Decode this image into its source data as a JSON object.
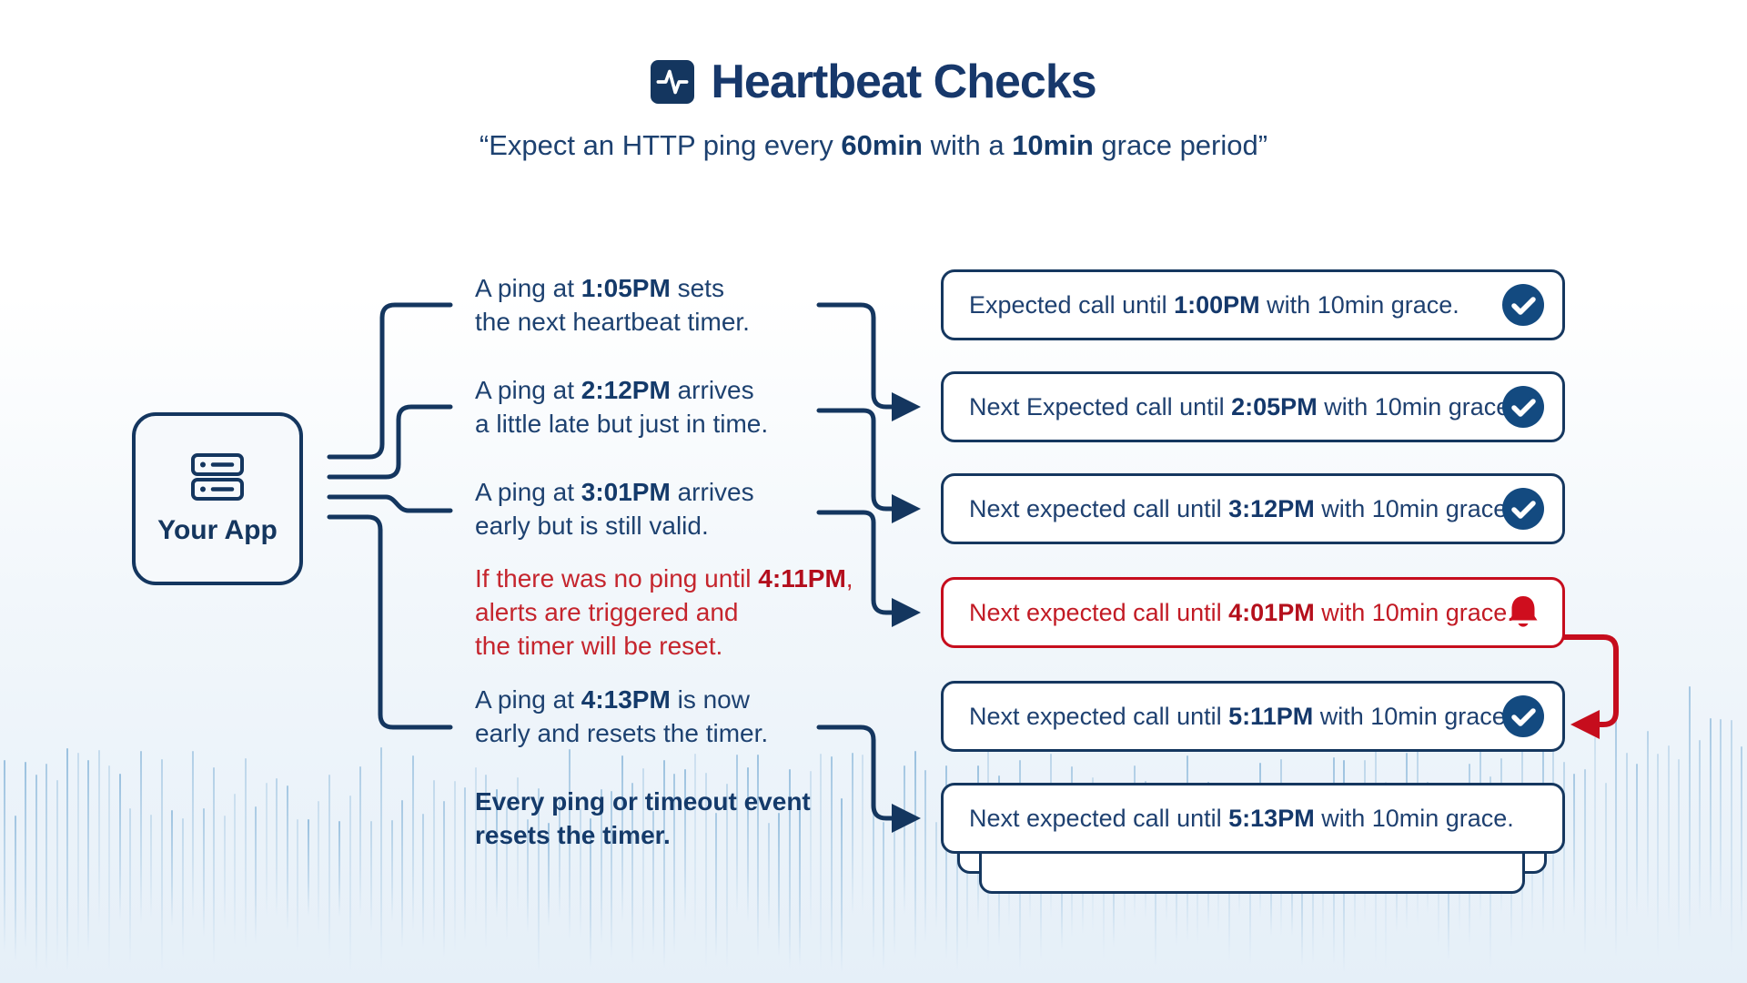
{
  "title": {
    "text": "Heartbeat Checks",
    "icon": "heartbeat-pulse-icon"
  },
  "subtitle": {
    "parts": [
      {
        "t": "“Expect an HTTP ping every "
      },
      {
        "t": "60min",
        "b": true
      },
      {
        "t": " with a "
      },
      {
        "t": "10min",
        "b": true
      },
      {
        "t": " grace period”"
      }
    ]
  },
  "app": {
    "label": "Your App",
    "icon": "server-icon"
  },
  "rows": [
    {
      "annotation": {
        "variant": "normal",
        "lines": [
          [
            {
              "t": "A ping at "
            },
            {
              "t": "1:05PM",
              "b": true
            },
            {
              "t": " sets"
            }
          ],
          [
            {
              "t": "the next heartbeat timer."
            }
          ]
        ]
      },
      "box": {
        "variant": "normal",
        "icon": "check",
        "parts": [
          {
            "t": "Expected call until "
          },
          {
            "t": "1:00PM",
            "b": true
          },
          {
            "t": " with 10min grace."
          }
        ]
      }
    },
    {
      "annotation": {
        "variant": "normal",
        "lines": [
          [
            {
              "t": "A ping at "
            },
            {
              "t": "2:12PM",
              "b": true
            },
            {
              "t": " arrives"
            }
          ],
          [
            {
              "t": "a little late but just in time."
            }
          ]
        ]
      },
      "box": {
        "variant": "normal",
        "icon": "check",
        "parts": [
          {
            "t": "Next Expected call until "
          },
          {
            "t": "2:05PM",
            "b": true
          },
          {
            "t": " with 10min grace."
          }
        ]
      }
    },
    {
      "annotation": {
        "variant": "normal",
        "lines": [
          [
            {
              "t": "A ping at "
            },
            {
              "t": "3:01PM",
              "b": true
            },
            {
              "t": " arrives"
            }
          ],
          [
            {
              "t": "early but is still valid."
            }
          ]
        ]
      },
      "box": {
        "variant": "normal",
        "icon": "check",
        "parts": [
          {
            "t": "Next expected call until "
          },
          {
            "t": "3:12PM",
            "b": true
          },
          {
            "t": " with 10min grace."
          }
        ]
      }
    },
    {
      "annotation": {
        "variant": "alert",
        "lines": [
          [
            {
              "t": "If there was no ping until "
            },
            {
              "t": "4:11PM",
              "b": true
            },
            {
              "t": ","
            }
          ],
          [
            {
              "t": "alerts are triggered and"
            }
          ],
          [
            {
              "t": "the timer will be reset."
            }
          ]
        ]
      },
      "box": {
        "variant": "alert",
        "icon": "bell",
        "parts": [
          {
            "t": "Next expected call until "
          },
          {
            "t": "4:01PM",
            "b": true
          },
          {
            "t": " with 10min grace."
          }
        ]
      }
    },
    {
      "annotation": {
        "variant": "normal",
        "lines": [
          [
            {
              "t": "A ping at "
            },
            {
              "t": "4:13PM",
              "b": true
            },
            {
              "t": " is now"
            }
          ],
          [
            {
              "t": "early and resets the timer."
            }
          ]
        ]
      },
      "box": {
        "variant": "normal",
        "icon": "check",
        "parts": [
          {
            "t": "Next expected call until "
          },
          {
            "t": "5:11PM",
            "b": true
          },
          {
            "t": " with 10min grace."
          }
        ]
      }
    },
    {
      "annotation": {
        "variant": "strong",
        "lines": [
          [
            {
              "t": "Every ping or timeout event",
              "b": true
            }
          ],
          [
            {
              "t": "resets the timer.",
              "b": true
            }
          ]
        ]
      },
      "box": {
        "variant": "normal",
        "icon": null,
        "parts": [
          {
            "t": "Next expected call until "
          },
          {
            "t": "5:13PM",
            "b": true
          },
          {
            "t": " with 10min grace."
          }
        ]
      }
    }
  ],
  "colors": {
    "navy": "#14365f",
    "navy_text": "#1d4170",
    "check_circle": "#134a80",
    "alert_red": "#c60d1d",
    "alert_text": "#c5252d",
    "wave_blue": "#7fb0d6",
    "card_bg": "#ffffff",
    "app_bg": "#f6f9fc"
  }
}
